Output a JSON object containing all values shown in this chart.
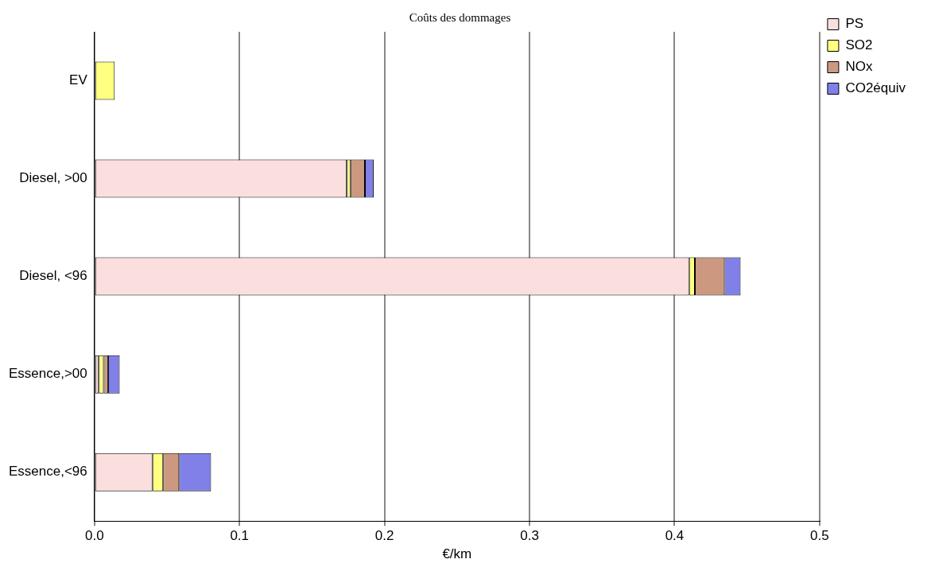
{
  "chart_data": {
    "type": "bar",
    "orientation": "horizontal",
    "stacked": true,
    "title": "Coûts des dommages",
    "xlabel": "€/km",
    "categories": [
      "EV",
      "Diesel, >00",
      "Diesel, <96",
      "Essence,>00",
      "Essence,<96"
    ],
    "series": [
      {
        "name": "PS",
        "color": "#fbdfdf",
        "values": [
          null,
          0.174,
          0.41,
          0.003,
          0.04
        ]
      },
      {
        "name": "SO2",
        "color": "#ffff80",
        "values": [
          0.014,
          0.0025,
          0.004,
          0.0034,
          0.0074
        ]
      },
      {
        "name": "NOx",
        "color": "#cc9980",
        "values": [
          null,
          0.01,
          0.0205,
          0.003,
          0.011
        ]
      },
      {
        "name": "CO2équiv",
        "color": "#8080e8",
        "values": [
          null,
          0.006,
          0.011,
          0.008,
          0.022
        ]
      }
    ],
    "xlim": [
      0,
      0.5
    ],
    "xticks": [
      {
        "value": 0,
        "label": "0.0"
      },
      {
        "value": 0.1,
        "label": "0.1"
      },
      {
        "value": 0.2,
        "label": "0.2"
      },
      {
        "value": 0.3,
        "label": "0.3"
      },
      {
        "value": 0.4,
        "label": "0.4"
      },
      {
        "value": 0.5,
        "label": "0.5"
      }
    ],
    "grid": "x",
    "legend": "top right"
  }
}
